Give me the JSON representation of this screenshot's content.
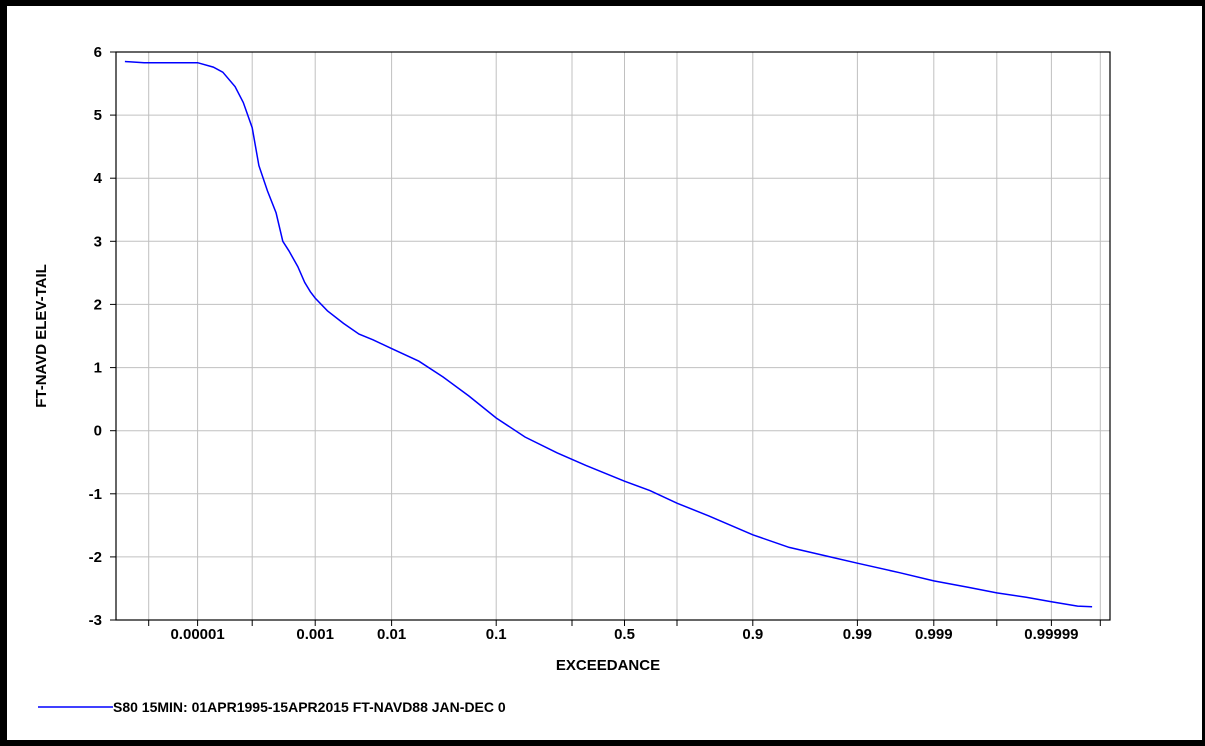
{
  "chart_data": {
    "type": "line",
    "xlabel": "EXCEEDANCE",
    "ylabel": "FT-NAVD ELEV-TAIL",
    "ylim": [
      -3,
      6
    ],
    "y_ticks": [
      "6",
      "5",
      "4",
      "3",
      "2",
      "1",
      "0",
      "-1",
      "-2",
      "-3"
    ],
    "x_scale": "normal-probability",
    "x_ticks": [
      "0.00001",
      "0.001",
      "0.01",
      "0.1",
      "0.5",
      "0.9",
      "0.99",
      "0.999",
      "0.99999"
    ],
    "grid": true,
    "legend_placement": "bottom-left",
    "colors": {
      "series": "#0000ff",
      "grid": "#c0c0c0",
      "axis": "#000000"
    },
    "series": [
      {
        "name": "S80 15MIN: 01APR1995-15APR2015 FT-NAVD88 JAN-DEC 0",
        "color": "#0000ff",
        "points": [
          [
            3e-07,
            5.85
          ],
          [
            8e-07,
            5.83
          ],
          [
            2e-06,
            5.83
          ],
          [
            5e-06,
            5.83
          ],
          [
            1e-05,
            5.83
          ],
          [
            2e-05,
            5.76
          ],
          [
            3e-05,
            5.68
          ],
          [
            5e-05,
            5.45
          ],
          [
            7e-05,
            5.2
          ],
          [
            0.0001,
            4.8
          ],
          [
            0.00013,
            4.2
          ],
          [
            0.00018,
            3.8
          ],
          [
            0.00025,
            3.45
          ],
          [
            0.00032,
            3.0
          ],
          [
            0.0004,
            2.85
          ],
          [
            0.00055,
            2.6
          ],
          [
            0.0007,
            2.35
          ],
          [
            0.00085,
            2.2
          ],
          [
            0.001,
            2.1
          ],
          [
            0.0015,
            1.9
          ],
          [
            0.0025,
            1.7
          ],
          [
            0.004,
            1.53
          ],
          [
            0.006,
            1.44
          ],
          [
            0.01,
            1.3
          ],
          [
            0.02,
            1.1
          ],
          [
            0.035,
            0.85
          ],
          [
            0.06,
            0.55
          ],
          [
            0.1,
            0.2
          ],
          [
            0.16,
            -0.1
          ],
          [
            0.25,
            -0.35
          ],
          [
            0.35,
            -0.55
          ],
          [
            0.5,
            -0.8
          ],
          [
            0.6,
            -0.95
          ],
          [
            0.7,
            -1.15
          ],
          [
            0.8,
            -1.35
          ],
          [
            0.9,
            -1.65
          ],
          [
            0.95,
            -1.85
          ],
          [
            0.98,
            -2.0
          ],
          [
            0.99,
            -2.1
          ],
          [
            0.997,
            -2.25
          ],
          [
            0.999,
            -2.38
          ],
          [
            0.9997,
            -2.48
          ],
          [
            0.9999,
            -2.57
          ],
          [
            0.99997,
            -2.64
          ],
          [
            0.99999,
            -2.71
          ],
          [
            0.999997,
            -2.78
          ],
          [
            0.9999985,
            -2.79
          ]
        ]
      }
    ]
  }
}
